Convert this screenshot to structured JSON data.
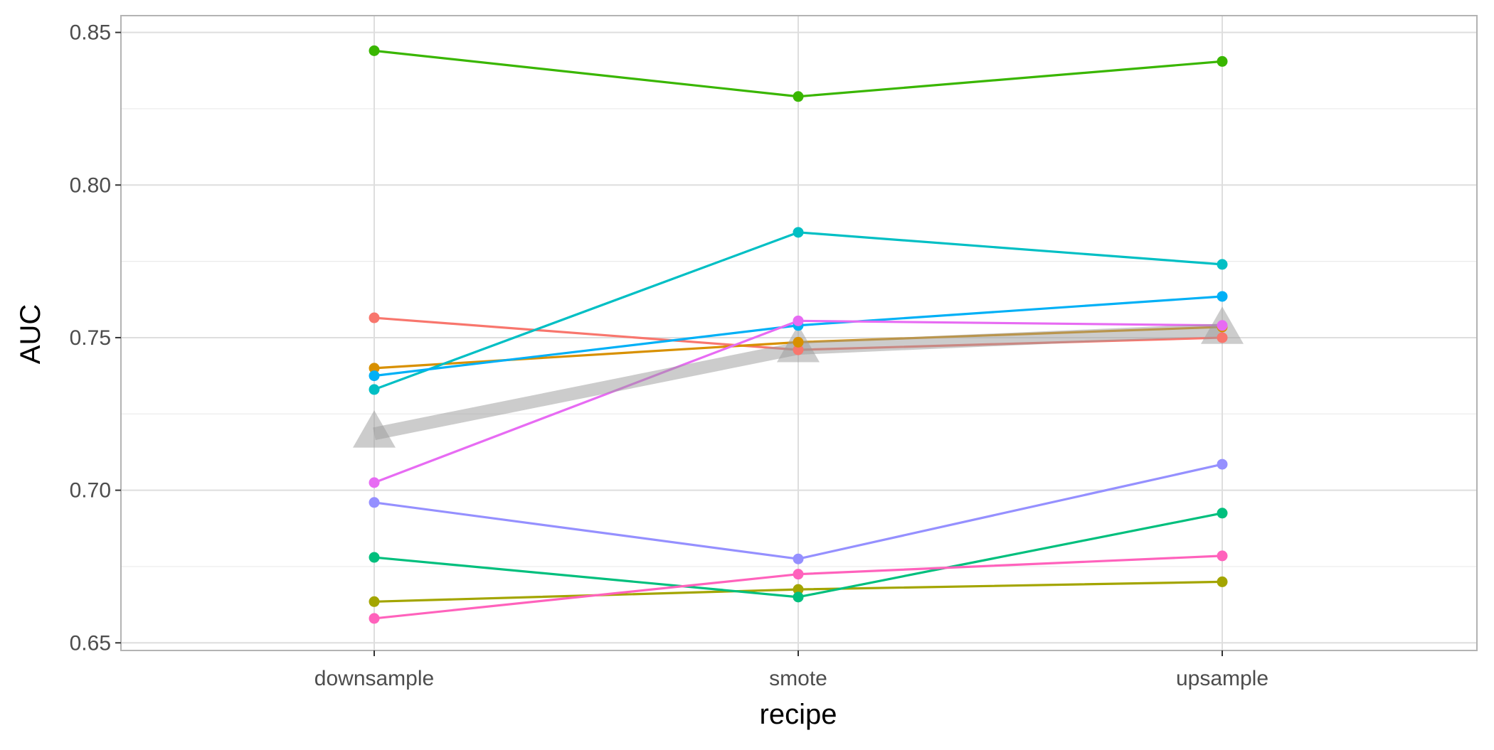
{
  "chart_data": {
    "type": "line",
    "title": "",
    "xlabel": "recipe",
    "ylabel": "AUC",
    "categories": [
      "downsample",
      "smote",
      "upsample"
    ],
    "ylim": [
      0.6475,
      0.8555
    ],
    "yticks": [
      0.65,
      0.7,
      0.75,
      0.8,
      0.85
    ],
    "ytick_labels": [
      "0.65",
      "0.70",
      "0.75",
      "0.80",
      "0.85"
    ],
    "grid": true,
    "legend": "none",
    "series": [
      {
        "color": "#F8766D",
        "values": [
          0.7565,
          0.746,
          0.75
        ]
      },
      {
        "color": "#D89000",
        "values": [
          0.74,
          0.7485,
          0.7535
        ]
      },
      {
        "color": "#A3A500",
        "values": [
          0.6635,
          0.6675,
          0.67
        ]
      },
      {
        "color": "#39B600",
        "values": [
          0.844,
          0.829,
          0.8405
        ]
      },
      {
        "color": "#00BF7D",
        "values": [
          0.678,
          0.665,
          0.6925
        ]
      },
      {
        "color": "#00BFC4",
        "values": [
          0.733,
          0.7845,
          0.774
        ]
      },
      {
        "color": "#00B0F6",
        "values": [
          0.7375,
          0.754,
          0.7635
        ]
      },
      {
        "color": "#9590FF",
        "values": [
          0.696,
          0.6775,
          0.7085
        ]
      },
      {
        "color": "#E76BF3",
        "values": [
          0.7025,
          0.7555,
          0.754
        ]
      },
      {
        "color": "#FF62BC",
        "values": [
          0.658,
          0.6725,
          0.6785
        ]
      }
    ],
    "mean_series": {
      "color": "#999999",
      "marker": "triangle",
      "values": [
        0.7185,
        0.7465,
        0.7525
      ]
    }
  }
}
